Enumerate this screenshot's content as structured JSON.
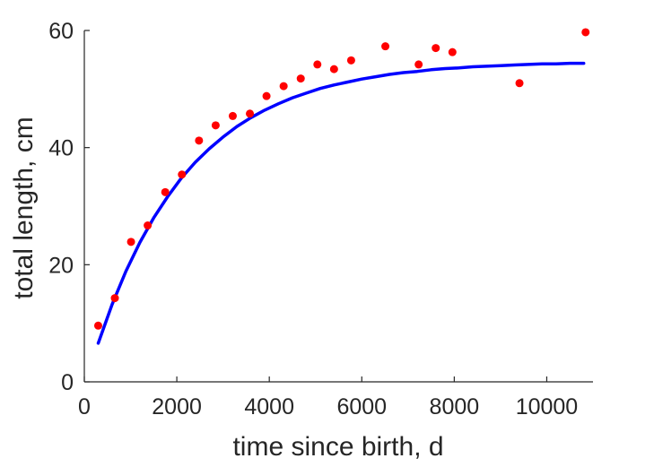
{
  "chart_data": {
    "type": "scatter",
    "xlabel": "time since birth, d",
    "ylabel": "total length, cm",
    "xlim": [
      0,
      11000
    ],
    "ylim": [
      0,
      60
    ],
    "xticks": [
      0,
      2000,
      4000,
      6000,
      8000,
      10000
    ],
    "yticks": [
      0,
      20,
      40,
      60
    ],
    "grid": false,
    "series": [
      {
        "kind": "points",
        "color": "#ff0000",
        "x": [
          300,
          660,
          1010,
          1370,
          1750,
          2110,
          2480,
          2840,
          3210,
          3580,
          3940,
          4310,
          4680,
          5040,
          5400,
          5770,
          6510,
          7230,
          7600,
          7960,
          9410,
          10840
        ],
        "y": [
          9.6,
          14.3,
          23.9,
          26.7,
          32.4,
          35.4,
          41.2,
          43.8,
          45.4,
          45.8,
          48.8,
          50.5,
          51.8,
          54.2,
          53.4,
          54.9,
          57.3,
          54.2,
          57.0,
          56.3,
          51.0,
          59.7
        ]
      },
      {
        "kind": "line",
        "color": "#0000ff",
        "x": [
          300,
          600,
          900,
          1200,
          1500,
          1800,
          2100,
          2400,
          2700,
          3000,
          3300,
          3600,
          3900,
          4200,
          4500,
          4800,
          5100,
          5400,
          5700,
          6000,
          6300,
          6600,
          6900,
          7200,
          7500,
          7800,
          8100,
          8400,
          8700,
          9000,
          9300,
          9600,
          9900,
          10200,
          10500,
          10800
        ],
        "y": [
          6.6,
          13.2,
          18.9,
          23.8,
          28.0,
          31.6,
          34.8,
          37.5,
          39.8,
          41.8,
          43.6,
          45.1,
          46.4,
          47.5,
          48.5,
          49.3,
          50.1,
          50.7,
          51.2,
          51.7,
          52.1,
          52.5,
          52.8,
          53.0,
          53.3,
          53.5,
          53.6,
          53.8,
          53.9,
          54.0,
          54.1,
          54.2,
          54.3,
          54.3,
          54.4,
          54.4
        ]
      }
    ]
  }
}
